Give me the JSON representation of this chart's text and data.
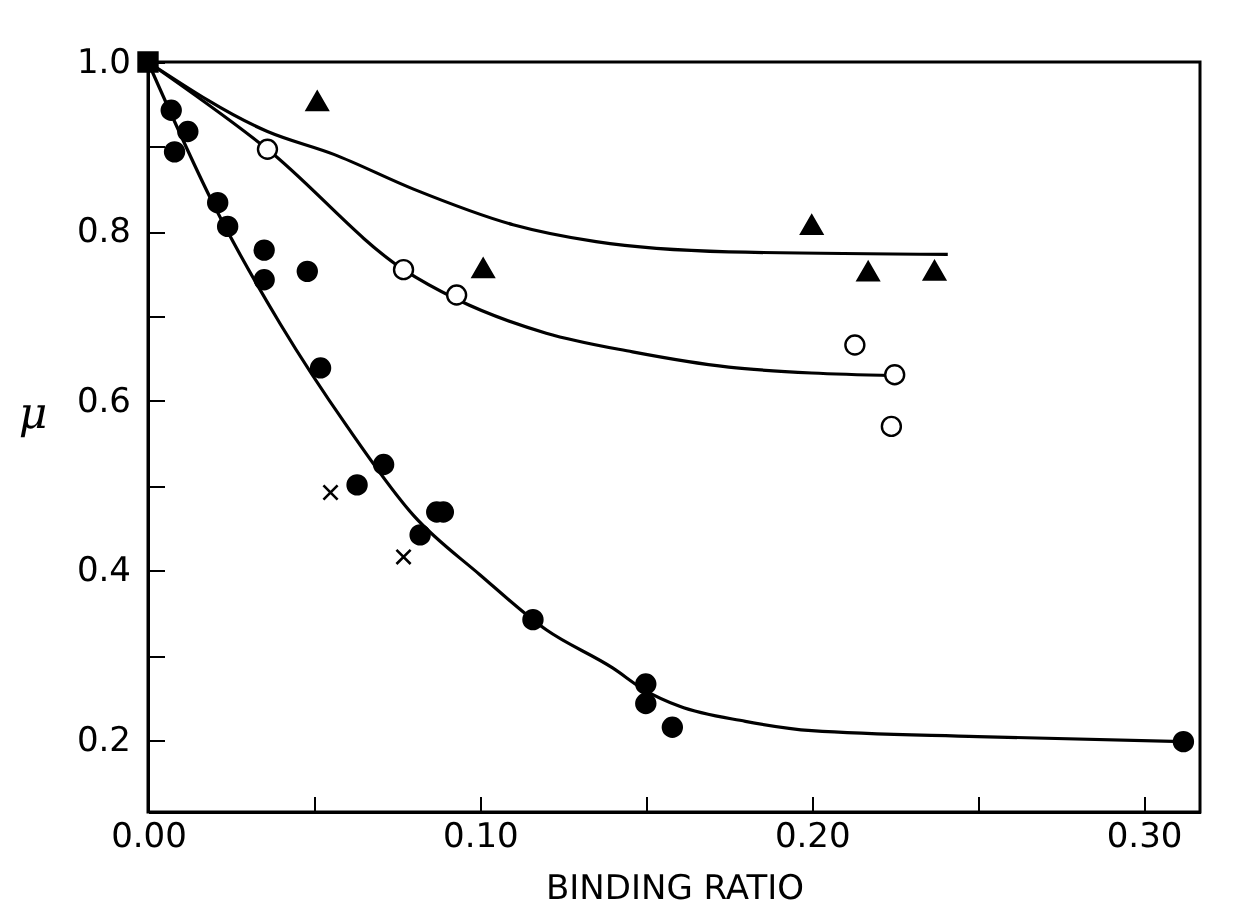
{
  "chart_data": {
    "type": "scatter",
    "xlabel": "BINDING RATIO",
    "ylabel": "μ",
    "xlim": [
      0,
      0.317
    ],
    "ylim": [
      0.115,
      1.0
    ],
    "xticks": [
      {
        "value": 0,
        "label": "0.00"
      },
      {
        "value": 0.05,
        "label": null
      },
      {
        "value": 0.1,
        "label": "0.10"
      },
      {
        "value": 0.15,
        "label": null
      },
      {
        "value": 0.2,
        "label": "0.20"
      },
      {
        "value": 0.25,
        "label": null
      },
      {
        "value": 0.3,
        "label": "0.30"
      }
    ],
    "yticks": [
      0.2,
      {
        "value": 0.3,
        "label": null
      },
      0.4,
      {
        "value": 0.5,
        "label": null
      },
      0.6,
      {
        "value": 0.7,
        "label": null
      },
      0.8,
      {
        "value": 0.9,
        "label": null
      },
      {
        "value": 1.0,
        "label": "1.0"
      }
    ],
    "grid": false,
    "series": [
      {
        "type": "line",
        "color": "#000000",
        "marker": "none",
        "line_style": "solid",
        "x": [
          0,
          0.02,
          0.04,
          0.06,
          0.08,
          0.1,
          0.12,
          0.14,
          0.15,
          0.16,
          0.18,
          0.2,
          0.25,
          0.312
        ],
        "values": [
          1.0,
          0.83,
          0.69,
          0.57,
          0.465,
          0.395,
          0.33,
          0.285,
          0.258,
          0.24,
          0.222,
          0.211,
          0.204,
          0.198
        ]
      },
      {
        "type": "line",
        "color": "#000000",
        "marker": "none",
        "line_style": "solid",
        "x": [
          0,
          0.036,
          0.077,
          0.093,
          0.12,
          0.146,
          0.175,
          0.2,
          0.225
        ],
        "values": [
          1.0,
          0.897,
          0.755,
          0.72,
          0.68,
          0.658,
          0.64,
          0.633,
          0.63
        ]
      },
      {
        "type": "line",
        "color": "#000000",
        "marker": "none",
        "line_style": "solid",
        "x": [
          0,
          0.036,
          0.056,
          0.08,
          0.11,
          0.135,
          0.175,
          0.241
        ],
        "values": [
          1.0,
          0.918,
          0.891,
          0.85,
          0.808,
          0.788,
          0.776,
          0.773
        ]
      },
      {
        "color": "#000000",
        "marker": "circle",
        "x": [
          0.007,
          0.008,
          0.012,
          0.021,
          0.024,
          0.035,
          0.035,
          0.048,
          0.052,
          0.063,
          0.071,
          0.082,
          0.087,
          0.089,
          0.116,
          0.15,
          0.15,
          0.158,
          0.312
        ],
        "values": [
          0.943,
          0.894,
          0.918,
          0.834,
          0.806,
          0.778,
          0.743,
          0.753,
          0.639,
          0.501,
          0.525,
          0.442,
          0.469,
          0.469,
          0.342,
          0.266,
          0.243,
          0.215,
          0.198
        ]
      },
      {
        "color": "#ffffff",
        "marker": "circle",
        "x": [
          0.036,
          0.077,
          0.093,
          0.213,
          0.225,
          0.224
        ],
        "values": [
          0.897,
          0.755,
          0.725,
          0.666,
          0.631,
          0.57
        ]
      },
      {
        "color": "#000000",
        "marker": "triangle",
        "x": [
          0.051,
          0.101,
          0.2,
          0.217,
          0.237
        ],
        "values": [
          0.954,
          0.757,
          0.808,
          0.753,
          0.754
        ]
      },
      {
        "color": "#000000",
        "marker": "cross",
        "x": [
          0.055,
          0.077
        ],
        "values": [
          0.492,
          0.416
        ]
      },
      {
        "color": "#000000",
        "marker": "square",
        "x": [
          0
        ],
        "values": [
          1.0
        ]
      }
    ]
  }
}
